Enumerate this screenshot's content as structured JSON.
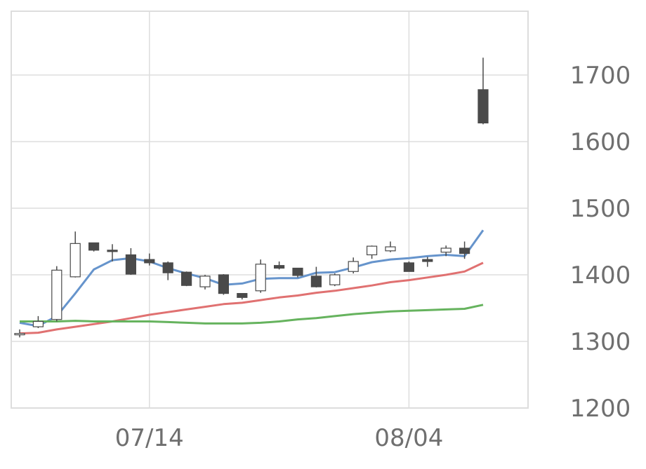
{
  "chart_data": {
    "type": "candlestick",
    "title": "",
    "xlabel": "",
    "ylabel": "",
    "ylim": [
      1200,
      1800
    ],
    "yticks": [
      "1200",
      "1300",
      "1400",
      "1500",
      "1600",
      "1700"
    ],
    "xtick_labels": [
      {
        "label": "07/14",
        "index": 7
      },
      {
        "label": "08/04",
        "index": 21
      }
    ],
    "grid": true,
    "y_axis_side": "right",
    "colors": {
      "up_candle_fill": "#ffffff",
      "down_candle_fill": "#4a4a4a",
      "candle_stroke": "#4a4a4a",
      "grid": "#dddddd",
      "ma_short": "#6694cc",
      "ma_mid": "#e07171",
      "ma_long": "#66b35e"
    },
    "candles": [
      {
        "o": 1312,
        "h": 1318,
        "l": 1306,
        "c": 1312
      },
      {
        "o": 1322,
        "h": 1338,
        "l": 1320,
        "c": 1330
      },
      {
        "o": 1333,
        "h": 1413,
        "l": 1330,
        "c": 1407
      },
      {
        "o": 1397,
        "h": 1465,
        "l": 1396,
        "c": 1447
      },
      {
        "o": 1448,
        "h": 1448,
        "l": 1435,
        "c": 1437
      },
      {
        "o": 1437,
        "h": 1446,
        "l": 1420,
        "c": 1435
      },
      {
        "o": 1430,
        "h": 1440,
        "l": 1400,
        "c": 1401
      },
      {
        "o": 1423,
        "h": 1432,
        "l": 1414,
        "c": 1418
      },
      {
        "o": 1418,
        "h": 1420,
        "l": 1392,
        "c": 1403
      },
      {
        "o": 1404,
        "h": 1405,
        "l": 1383,
        "c": 1384
      },
      {
        "o": 1382,
        "h": 1400,
        "l": 1378,
        "c": 1398
      },
      {
        "o": 1400,
        "h": 1401,
        "l": 1370,
        "c": 1372
      },
      {
        "o": 1372,
        "h": 1372,
        "l": 1363,
        "c": 1366
      },
      {
        "o": 1376,
        "h": 1423,
        "l": 1373,
        "c": 1416
      },
      {
        "o": 1414,
        "h": 1420,
        "l": 1408,
        "c": 1410
      },
      {
        "o": 1410,
        "h": 1410,
        "l": 1396,
        "c": 1399
      },
      {
        "o": 1398,
        "h": 1412,
        "l": 1381,
        "c": 1382
      },
      {
        "o": 1385,
        "h": 1402,
        "l": 1383,
        "c": 1400
      },
      {
        "o": 1405,
        "h": 1426,
        "l": 1402,
        "c": 1420
      },
      {
        "o": 1430,
        "h": 1444,
        "l": 1424,
        "c": 1443
      },
      {
        "o": 1436,
        "h": 1450,
        "l": 1434,
        "c": 1442
      },
      {
        "o": 1418,
        "h": 1420,
        "l": 1405,
        "c": 1405
      },
      {
        "o": 1423,
        "h": 1427,
        "l": 1412,
        "c": 1420
      },
      {
        "o": 1434,
        "h": 1444,
        "l": 1428,
        "c": 1440
      },
      {
        "o": 1440,
        "h": 1450,
        "l": 1424,
        "c": 1432
      },
      {
        "o": 1678,
        "h": 1726,
        "l": 1626,
        "c": 1628
      }
    ],
    "series": [
      {
        "values": [
          1328,
          1323,
          1338,
          1372,
          1408,
          1422,
          1425,
          1420,
          1410,
          1402,
          1395,
          1385,
          1387,
          1394,
          1395,
          1395,
          1403,
          1404,
          1411,
          1419,
          1423,
          1425,
          1428,
          1430,
          1428,
          1467
        ]
      },
      {
        "values": [
          1312,
          1313,
          1318,
          1322,
          1326,
          1330,
          1335,
          1340,
          1344,
          1348,
          1352,
          1356,
          1358,
          1362,
          1366,
          1369,
          1373,
          1376,
          1380,
          1384,
          1389,
          1392,
          1396,
          1400,
          1405,
          1418
        ]
      },
      {
        "values": [
          1330,
          1330,
          1330,
          1331,
          1330,
          1330,
          1330,
          1330,
          1329,
          1328,
          1327,
          1327,
          1327,
          1328,
          1330,
          1333,
          1335,
          1338,
          1341,
          1343,
          1345,
          1346,
          1347,
          1348,
          1349,
          1355
        ]
      }
    ]
  }
}
